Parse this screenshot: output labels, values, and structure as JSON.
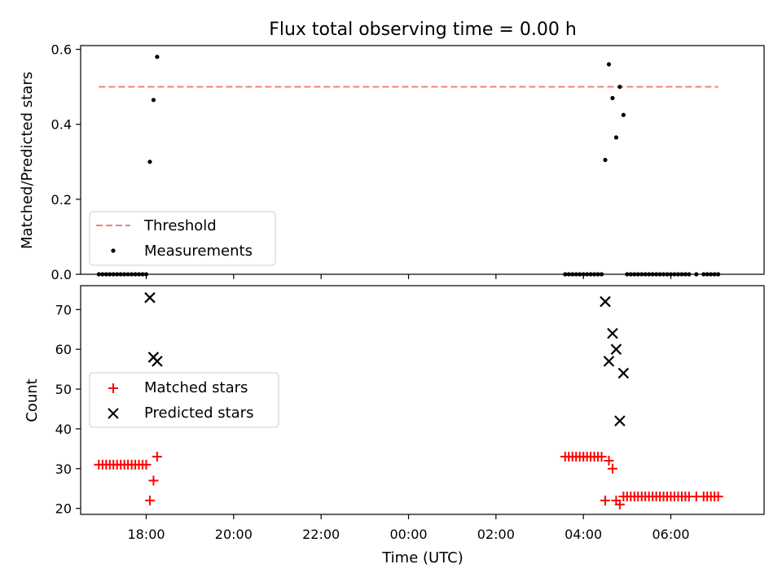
{
  "title": "Flux total observing time = 0.00 h",
  "colors": {
    "threshold": "#f08080",
    "measurements": "#000000",
    "matched": "#ff0000",
    "predicted": "#000000"
  },
  "chart_data": [
    {
      "type": "scatter",
      "panel": "top",
      "xlabel": "",
      "ylabel": "Matched/Predicted stars",
      "xlim": [
        "16:30",
        "08:08"
      ],
      "ylim": [
        0,
        0.61
      ],
      "yticks": [
        "0.0",
        "0.2",
        "0.4",
        "0.6"
      ],
      "legend_position": "lower-left",
      "threshold": {
        "name": "Threshold",
        "value": 0.5,
        "x": [
          "16:55",
          "07:05"
        ]
      },
      "series": [
        {
          "name": "Measurements",
          "points": [
            [
              "16:55",
              0.0
            ],
            [
              "17:00",
              0.0
            ],
            [
              "17:05",
              0.0
            ],
            [
              "17:10",
              0.0
            ],
            [
              "17:15",
              0.0
            ],
            [
              "17:20",
              0.0
            ],
            [
              "17:25",
              0.0
            ],
            [
              "17:30",
              0.0
            ],
            [
              "17:35",
              0.0
            ],
            [
              "17:40",
              0.0
            ],
            [
              "17:45",
              0.0
            ],
            [
              "17:50",
              0.0
            ],
            [
              "17:55",
              0.0
            ],
            [
              "18:00",
              0.0
            ],
            [
              "18:05",
              0.3
            ],
            [
              "18:10",
              0.465
            ],
            [
              "18:15",
              0.58
            ],
            [
              "03:35",
              0.0
            ],
            [
              "03:40",
              0.0
            ],
            [
              "03:45",
              0.0
            ],
            [
              "03:50",
              0.0
            ],
            [
              "03:55",
              0.0
            ],
            [
              "04:00",
              0.0
            ],
            [
              "04:05",
              0.0
            ],
            [
              "04:10",
              0.0
            ],
            [
              "04:15",
              0.0
            ],
            [
              "04:20",
              0.0
            ],
            [
              "04:25",
              0.0
            ],
            [
              "04:30",
              0.305
            ],
            [
              "04:35",
              0.56
            ],
            [
              "04:40",
              0.47
            ],
            [
              "04:45",
              0.365
            ],
            [
              "04:50",
              0.5
            ],
            [
              "04:55",
              0.425
            ],
            [
              "05:00",
              0.0
            ],
            [
              "05:05",
              0.0
            ],
            [
              "05:10",
              0.0
            ],
            [
              "05:15",
              0.0
            ],
            [
              "05:20",
              0.0
            ],
            [
              "05:25",
              0.0
            ],
            [
              "05:30",
              0.0
            ],
            [
              "05:35",
              0.0
            ],
            [
              "05:40",
              0.0
            ],
            [
              "05:45",
              0.0
            ],
            [
              "05:50",
              0.0
            ],
            [
              "05:55",
              0.0
            ],
            [
              "06:00",
              0.0
            ],
            [
              "06:05",
              0.0
            ],
            [
              "06:10",
              0.0
            ],
            [
              "06:15",
              0.0
            ],
            [
              "06:20",
              0.0
            ],
            [
              "06:25",
              0.0
            ],
            [
              "06:35",
              0.0
            ],
            [
              "06:45",
              0.0
            ],
            [
              "06:50",
              0.0
            ],
            [
              "06:55",
              0.0
            ],
            [
              "07:00",
              0.0
            ],
            [
              "07:05",
              0.0
            ]
          ]
        }
      ]
    },
    {
      "type": "scatter",
      "panel": "bottom",
      "xlabel": "Time (UTC)",
      "ylabel": "Count",
      "xlim": [
        "16:30",
        "08:08"
      ],
      "ylim": [
        18.5,
        76
      ],
      "xticks": [
        "18:00",
        "20:00",
        "22:00",
        "00:00",
        "02:00",
        "04:00",
        "06:00"
      ],
      "yticks": [
        "20",
        "30",
        "40",
        "50",
        "60",
        "70"
      ],
      "legend_position": "center-left",
      "series": [
        {
          "name": "Matched stars",
          "marker": "plus",
          "points": [
            [
              "16:55",
              31
            ],
            [
              "17:00",
              31
            ],
            [
              "17:05",
              31
            ],
            [
              "17:10",
              31
            ],
            [
              "17:15",
              31
            ],
            [
              "17:20",
              31
            ],
            [
              "17:25",
              31
            ],
            [
              "17:30",
              31
            ],
            [
              "17:35",
              31
            ],
            [
              "17:40",
              31
            ],
            [
              "17:45",
              31
            ],
            [
              "17:50",
              31
            ],
            [
              "17:55",
              31
            ],
            [
              "18:00",
              31
            ],
            [
              "18:05",
              22
            ],
            [
              "18:10",
              27
            ],
            [
              "18:15",
              33
            ],
            [
              "03:35",
              33
            ],
            [
              "03:40",
              33
            ],
            [
              "03:45",
              33
            ],
            [
              "03:50",
              33
            ],
            [
              "03:55",
              33
            ],
            [
              "04:00",
              33
            ],
            [
              "04:05",
              33
            ],
            [
              "04:10",
              33
            ],
            [
              "04:15",
              33
            ],
            [
              "04:20",
              33
            ],
            [
              "04:25",
              33
            ],
            [
              "04:30",
              22
            ],
            [
              "04:35",
              32
            ],
            [
              "04:40",
              30
            ],
            [
              "04:45",
              22
            ],
            [
              "04:50",
              21
            ],
            [
              "04:55",
              23
            ],
            [
              "05:00",
              23
            ],
            [
              "05:05",
              23
            ],
            [
              "05:10",
              23
            ],
            [
              "05:15",
              23
            ],
            [
              "05:20",
              23
            ],
            [
              "05:25",
              23
            ],
            [
              "05:30",
              23
            ],
            [
              "05:35",
              23
            ],
            [
              "05:40",
              23
            ],
            [
              "05:45",
              23
            ],
            [
              "05:50",
              23
            ],
            [
              "05:55",
              23
            ],
            [
              "06:00",
              23
            ],
            [
              "06:05",
              23
            ],
            [
              "06:10",
              23
            ],
            [
              "06:15",
              23
            ],
            [
              "06:20",
              23
            ],
            [
              "06:25",
              23
            ],
            [
              "06:35",
              23
            ],
            [
              "06:45",
              23
            ],
            [
              "06:50",
              23
            ],
            [
              "06:55",
              23
            ],
            [
              "07:00",
              23
            ],
            [
              "07:05",
              23
            ]
          ]
        },
        {
          "name": "Predicted stars",
          "marker": "x",
          "points": [
            [
              "18:05",
              73
            ],
            [
              "18:10",
              58
            ],
            [
              "18:15",
              57
            ],
            [
              "04:30",
              72
            ],
            [
              "04:35",
              57
            ],
            [
              "04:40",
              64
            ],
            [
              "04:45",
              60
            ],
            [
              "04:50",
              42
            ],
            [
              "04:55",
              54
            ]
          ]
        }
      ]
    }
  ]
}
